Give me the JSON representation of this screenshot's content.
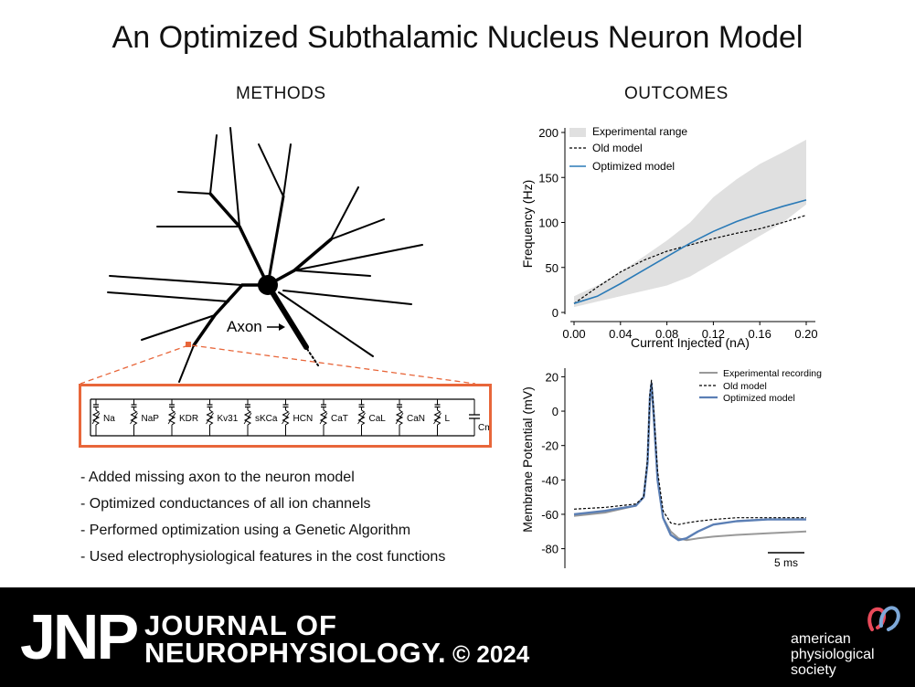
{
  "title": "An Optimized Subthalamic Nucleus Neuron Model",
  "methods": {
    "heading": "METHODS",
    "axon_label": "Axon",
    "channels": [
      "Na",
      "NaP",
      "KDR",
      "Kv31",
      "sKCa",
      "HCN",
      "CaT",
      "CaL",
      "CaN",
      "L",
      "Cm"
    ],
    "bullets": [
      "- Added missing axon to the neuron model",
      "- Optimized conductances of all ion channels",
      "- Performed optimization using a Genetic Algorithm",
      "- Used electrophysiological features in the cost functions"
    ]
  },
  "outcomes": {
    "heading": "OUTCOMES"
  },
  "colors": {
    "accent": "#e8663a",
    "optimized": "#2a7ab7",
    "optimized_trace": "#5b7fb5",
    "experimental_range": "#e0e0e0",
    "experimental_trace": "#999999"
  },
  "chart_data": [
    {
      "type": "line",
      "xlabel": "Current Injected (nA)",
      "ylabel": "Frequency (Hz)",
      "xlim": [
        0,
        0.2
      ],
      "ylim": [
        0,
        200
      ],
      "xticks": [
        "0.00",
        "0.04",
        "0.08",
        "0.12",
        "0.16",
        "0.20"
      ],
      "yticks": [
        "0",
        "50",
        "100",
        "150",
        "200"
      ],
      "legend": [
        "Experimental range",
        "Old model",
        "Optimized model"
      ],
      "x": [
        0,
        0.02,
        0.04,
        0.06,
        0.08,
        0.1,
        0.12,
        0.14,
        0.16,
        0.18,
        0.2
      ],
      "series": [
        {
          "name": "Experimental range (upper)",
          "values": [
            18,
            30,
            45,
            62,
            80,
            100,
            128,
            148,
            165,
            178,
            192
          ]
        },
        {
          "name": "Experimental range (lower)",
          "values": [
            6,
            12,
            18,
            24,
            30,
            40,
            55,
            70,
            85,
            100,
            120
          ]
        },
        {
          "name": "Old model",
          "values": [
            10,
            28,
            45,
            58,
            68,
            75,
            82,
            88,
            93,
            100,
            108
          ]
        },
        {
          "name": "Optimized model",
          "values": [
            10,
            18,
            32,
            47,
            62,
            77,
            90,
            101,
            110,
            118,
            125
          ]
        }
      ]
    },
    {
      "type": "line",
      "xlabel": "",
      "ylabel": "Membrane Potential (mV)",
      "ylim": [
        -85,
        25
      ],
      "yticks": [
        "20",
        "0",
        "-20",
        "-40",
        "-60",
        "-80"
      ],
      "scale_bar": "5 ms",
      "legend": [
        "Experimental recording",
        "Old model",
        "Optimized model"
      ],
      "t_ms": [
        0,
        4,
        8,
        9,
        9.5,
        9.8,
        10,
        10.3,
        10.8,
        11.5,
        12.5,
        13.5,
        14.5,
        16,
        18,
        21,
        25,
        30
      ],
      "series": [
        {
          "name": "Experimental recording",
          "values": [
            -61,
            -59,
            -55,
            -50,
            -30,
            5,
            15,
            -5,
            -40,
            -62,
            -70,
            -74,
            -75,
            -74,
            -73,
            -72,
            -71,
            -70
          ]
        },
        {
          "name": "Old model",
          "values": [
            -57,
            -56,
            -54,
            -50,
            -28,
            10,
            18,
            0,
            -35,
            -58,
            -65,
            -66,
            -65,
            -64,
            -63,
            -62,
            -62,
            -62
          ]
        },
        {
          "name": "Optimized model",
          "values": [
            -60,
            -58,
            -55,
            -50,
            -30,
            8,
            16,
            -2,
            -40,
            -62,
            -72,
            -75,
            -74,
            -70,
            -66,
            -64,
            -63,
            -63
          ]
        }
      ]
    }
  ],
  "footer": {
    "logo": "JNP",
    "journal_line1": "JOURNAL OF",
    "journal_line2": "NEUROPHYSIOLOGY.",
    "copyright": "© 2024",
    "aps_line1": "american",
    "aps_line2": "physiological",
    "aps_line3": "society"
  }
}
